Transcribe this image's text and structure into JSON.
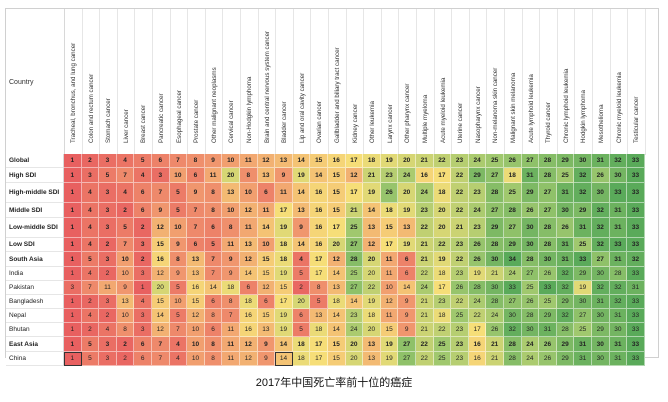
{
  "header": {
    "country_label": "Country"
  },
  "columns": [
    "Tracheal, bronchus, and lung cancer",
    "Colon and rectum cancer",
    "Stomach cancer",
    "Liver cancer",
    "Breast cancer",
    "Pancreatic cancer",
    "Esophageal cancer",
    "Prostate cancer",
    "Other malignant neoplasms",
    "Cervical cancer",
    "Non-Hodgkin lymphoma",
    "Brain and central nervous system cancer",
    "Bladder cancer",
    "Lip and oral cavity cancer",
    "Ovarian cancer",
    "Gallbladder and biliary tract cancer",
    "Kidney cancer",
    "Other leukemia",
    "Larynx cancer",
    "Other pharynx cancer",
    "Multiple myeloma",
    "Acute myeloid leukemia",
    "Uterine cancer",
    "Nasopharynx cancer",
    "Non-melanoma skin cancer",
    "Malignant skin melanoma",
    "Acute lymphoid leukemia",
    "Thyroid cancer",
    "Chronic lymphoid leukemia",
    "Hodgkin lymphoma",
    "Mesothelioma",
    "Chronic myeloid leukemia",
    "Testicular cancer"
  ],
  "rows": [
    {
      "name": "Global",
      "bold": true,
      "values": [
        1,
        2,
        3,
        4,
        5,
        6,
        7,
        8,
        9,
        10,
        11,
        12,
        13,
        14,
        15,
        16,
        17,
        18,
        19,
        20,
        21,
        22,
        23,
        24,
        25,
        26,
        27,
        28,
        29,
        30,
        31,
        32,
        33
      ]
    },
    {
      "name": "High SDI",
      "bold": true,
      "values": [
        1,
        3,
        5,
        7,
        4,
        3,
        10,
        6,
        11,
        20,
        8,
        13,
        9,
        19,
        14,
        15,
        12,
        21,
        23,
        24,
        16,
        17,
        22,
        29,
        27,
        18,
        31,
        28,
        25,
        32,
        26,
        30,
        33
      ]
    },
    {
      "name": "High-middle SDI",
      "bold": true,
      "values": [
        1,
        4,
        3,
        4,
        6,
        7,
        5,
        9,
        8,
        13,
        10,
        6,
        11,
        14,
        16,
        15,
        17,
        19,
        26,
        20,
        24,
        18,
        22,
        23,
        28,
        25,
        29,
        27,
        31,
        32,
        30,
        33,
        33
      ]
    },
    {
      "name": "Middle SDI",
      "bold": true,
      "values": [
        1,
        4,
        3,
        2,
        6,
        9,
        5,
        7,
        8,
        10,
        12,
        11,
        17,
        13,
        16,
        15,
        21,
        14,
        18,
        19,
        23,
        20,
        22,
        24,
        27,
        28,
        26,
        27,
        30,
        29,
        32,
        31,
        33
      ]
    },
    {
      "name": "Low-middle SDI",
      "bold": true,
      "values": [
        1,
        4,
        3,
        5,
        2,
        12,
        10,
        7,
        6,
        8,
        11,
        14,
        19,
        9,
        16,
        17,
        25,
        13,
        15,
        13,
        22,
        20,
        21,
        23,
        29,
        27,
        30,
        28,
        26,
        31,
        32,
        31,
        33
      ]
    },
    {
      "name": "Low SDI",
      "bold": true,
      "values": [
        1,
        4,
        2,
        7,
        3,
        15,
        9,
        6,
        5,
        11,
        13,
        10,
        18,
        14,
        16,
        20,
        27,
        12,
        17,
        19,
        21,
        22,
        23,
        26,
        28,
        29,
        30,
        28,
        31,
        25,
        32,
        33,
        33
      ]
    },
    {
      "name": "South Asia",
      "bold": true,
      "values": [
        1,
        5,
        3,
        10,
        2,
        16,
        8,
        13,
        7,
        9,
        12,
        15,
        18,
        4,
        17,
        12,
        28,
        20,
        11,
        6,
        21,
        19,
        22,
        26,
        30,
        34,
        28,
        30,
        31,
        33,
        27,
        31,
        32
      ]
    },
    {
      "name": "India",
      "bold": false,
      "values": [
        1,
        4,
        2,
        10,
        3,
        12,
        9,
        13,
        7,
        9,
        14,
        15,
        19,
        5,
        17,
        14,
        25,
        20,
        11,
        6,
        22,
        18,
        23,
        19,
        21,
        24,
        27,
        26,
        32,
        29,
        30,
        28,
        33
      ]
    },
    {
      "name": "Pakistan",
      "bold": false,
      "values": [
        3,
        7,
        11,
        9,
        1,
        20,
        5,
        16,
        14,
        18,
        6,
        12,
        15,
        2,
        8,
        13,
        27,
        22,
        10,
        14,
        24,
        17,
        26,
        28,
        30,
        33,
        25,
        33,
        32,
        19,
        32,
        32,
        31
      ]
    },
    {
      "name": "Bangladesh",
      "bold": false,
      "values": [
        1,
        2,
        3,
        13,
        4,
        15,
        10,
        15,
        6,
        8,
        18,
        6,
        17,
        20,
        5,
        18,
        14,
        19,
        12,
        9,
        21,
        23,
        22,
        24,
        28,
        27,
        26,
        25,
        29,
        30,
        31,
        32,
        33
      ]
    },
    {
      "name": "Nepal",
      "bold": false,
      "values": [
        1,
        4,
        2,
        10,
        3,
        14,
        5,
        12,
        8,
        7,
        16,
        15,
        19,
        6,
        13,
        14,
        23,
        18,
        11,
        9,
        21,
        18,
        25,
        22,
        24,
        30,
        28,
        29,
        32,
        27,
        30,
        31,
        33
      ]
    },
    {
      "name": "Bhutan",
      "bold": false,
      "values": [
        1,
        2,
        4,
        8,
        3,
        12,
        7,
        10,
        6,
        11,
        16,
        13,
        19,
        5,
        18,
        14,
        24,
        20,
        15,
        9,
        21,
        22,
        23,
        17,
        26,
        32,
        30,
        31,
        28,
        25,
        29,
        30,
        33
      ]
    },
    {
      "name": "East Asia",
      "bold": true,
      "values": [
        1,
        5,
        3,
        2,
        6,
        7,
        4,
        10,
        8,
        11,
        12,
        9,
        14,
        18,
        17,
        15,
        20,
        13,
        19,
        27,
        22,
        25,
        23,
        16,
        21,
        28,
        24,
        26,
        29,
        31,
        30,
        31,
        33
      ]
    },
    {
      "name": "China",
      "bold": false,
      "values": [
        1,
        5,
        3,
        2,
        6,
        7,
        4,
        10,
        8,
        11,
        12,
        9,
        14,
        18,
        17,
        15,
        20,
        13,
        19,
        27,
        22,
        25,
        23,
        16,
        21,
        28,
        24,
        26,
        29,
        31,
        30,
        31,
        33
      ]
    }
  ],
  "caption": "2017年中国死亡率前十位的癌症"
}
